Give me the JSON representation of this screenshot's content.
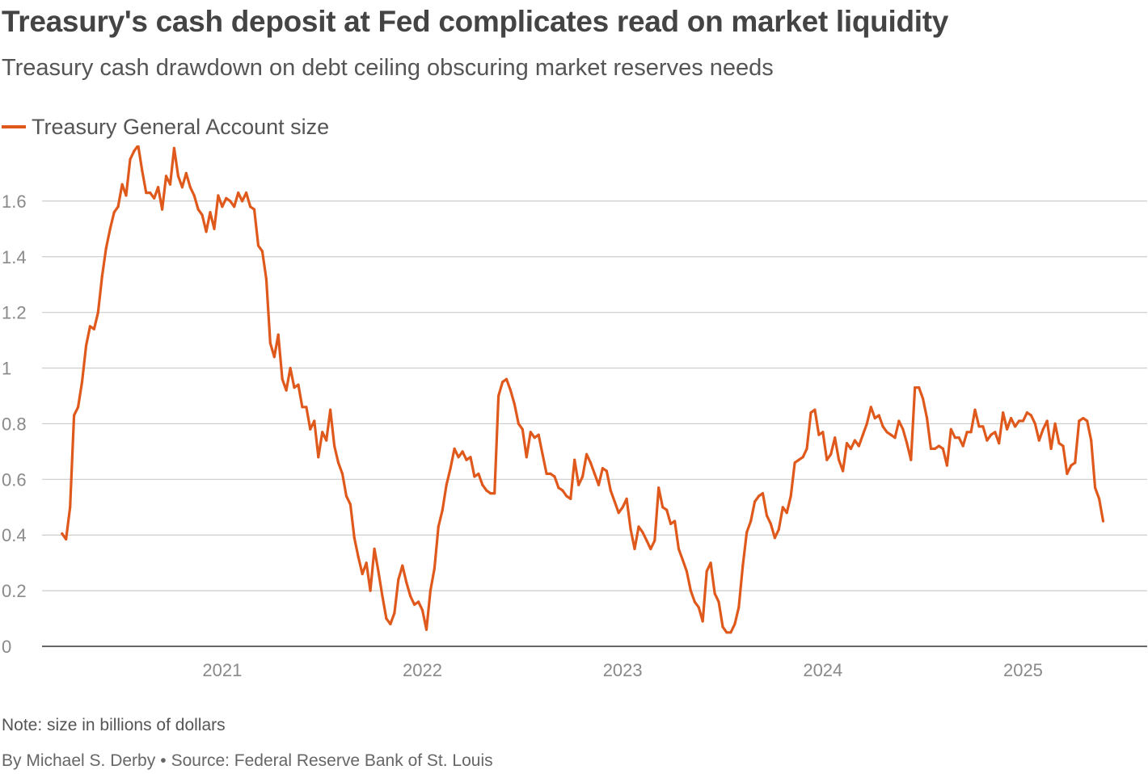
{
  "header": {
    "title": "Treasury's cash deposit at Fed complicates read on market liquidity",
    "subtitle": "Treasury cash drawdown on debt ceiling obscuring market reserves needs"
  },
  "footer": {
    "note": "Note: size in billions of dollars",
    "byline": "By Michael S. Derby",
    "separator": "•",
    "source": "Source: Federal Reserve Bank of St. Louis"
  },
  "colors": {
    "series": "#e0591c",
    "grid": "#cccccc",
    "axis": "#333333",
    "tick_text": "#8a8a8a"
  },
  "chart_data": {
    "type": "line",
    "title": "Treasury's cash deposit at Fed complicates read on market liquidity",
    "subtitle": "Treasury cash drawdown on debt ceiling obscuring market reserves needs",
    "xlabel": "",
    "ylabel": "",
    "units": "Note: size in billions of dollars",
    "legend_position": "top-left",
    "grid": "horizontal",
    "xlim": [
      2020.1,
      2025.62
    ],
    "ylim": [
      0,
      1.8
    ],
    "x_ticks": [
      {
        "value": 2021,
        "label": "2021"
      },
      {
        "value": 2022,
        "label": "2022"
      },
      {
        "value": 2023,
        "label": "2023"
      },
      {
        "value": 2024,
        "label": "2024"
      },
      {
        "value": 2025,
        "label": "2025"
      }
    ],
    "y_ticks": [
      {
        "value": 0,
        "label": "0"
      },
      {
        "value": 0.2,
        "label": "0.2"
      },
      {
        "value": 0.4,
        "label": "0.4"
      },
      {
        "value": 0.6,
        "label": "0.6"
      },
      {
        "value": 0.8,
        "label": "0.8"
      },
      {
        "value": 1,
        "label": "1"
      },
      {
        "value": 1.2,
        "label": "1.2"
      },
      {
        "value": 1.4,
        "label": "1.4"
      },
      {
        "value": 1.6,
        "label": "1.6"
      }
    ],
    "series": [
      {
        "name": "Treasury General Account size",
        "points": [
          [
            2020.2,
            0.405
          ],
          [
            2020.22,
            0.385
          ],
          [
            2020.24,
            0.5
          ],
          [
            2020.26,
            0.83
          ],
          [
            2020.28,
            0.86
          ],
          [
            2020.3,
            0.95
          ],
          [
            2020.32,
            1.08
          ],
          [
            2020.34,
            1.15
          ],
          [
            2020.36,
            1.14
          ],
          [
            2020.38,
            1.2
          ],
          [
            2020.4,
            1.33
          ],
          [
            2020.42,
            1.43
          ],
          [
            2020.44,
            1.5
          ],
          [
            2020.46,
            1.56
          ],
          [
            2020.48,
            1.58
          ],
          [
            2020.5,
            1.66
          ],
          [
            2020.52,
            1.62
          ],
          [
            2020.54,
            1.75
          ],
          [
            2020.56,
            1.78
          ],
          [
            2020.58,
            1.8
          ],
          [
            2020.6,
            1.71
          ],
          [
            2020.62,
            1.63
          ],
          [
            2020.64,
            1.63
          ],
          [
            2020.66,
            1.61
          ],
          [
            2020.68,
            1.65
          ],
          [
            2020.7,
            1.57
          ],
          [
            2020.72,
            1.69
          ],
          [
            2020.74,
            1.66
          ],
          [
            2020.76,
            1.79
          ],
          [
            2020.78,
            1.69
          ],
          [
            2020.8,
            1.65
          ],
          [
            2020.82,
            1.7
          ],
          [
            2020.84,
            1.65
          ],
          [
            2020.86,
            1.62
          ],
          [
            2020.88,
            1.57
          ],
          [
            2020.9,
            1.55
          ],
          [
            2020.92,
            1.49
          ],
          [
            2020.94,
            1.56
          ],
          [
            2020.96,
            1.5
          ],
          [
            2020.98,
            1.62
          ],
          [
            2021.0,
            1.58
          ],
          [
            2021.02,
            1.61
          ],
          [
            2021.04,
            1.6
          ],
          [
            2021.06,
            1.58
          ],
          [
            2021.08,
            1.63
          ],
          [
            2021.1,
            1.6
          ],
          [
            2021.12,
            1.63
          ],
          [
            2021.14,
            1.58
          ],
          [
            2021.16,
            1.57
          ],
          [
            2021.18,
            1.44
          ],
          [
            2021.2,
            1.42
          ],
          [
            2021.22,
            1.32
          ],
          [
            2021.24,
            1.09
          ],
          [
            2021.26,
            1.04
          ],
          [
            2021.28,
            1.12
          ],
          [
            2021.3,
            0.96
          ],
          [
            2021.32,
            0.92
          ],
          [
            2021.34,
            1.0
          ],
          [
            2021.36,
            0.93
          ],
          [
            2021.38,
            0.94
          ],
          [
            2021.4,
            0.86
          ],
          [
            2021.42,
            0.86
          ],
          [
            2021.44,
            0.78
          ],
          [
            2021.46,
            0.81
          ],
          [
            2021.48,
            0.68
          ],
          [
            2021.5,
            0.77
          ],
          [
            2021.52,
            0.74
          ],
          [
            2021.54,
            0.85
          ],
          [
            2021.56,
            0.72
          ],
          [
            2021.58,
            0.66
          ],
          [
            2021.6,
            0.62
          ],
          [
            2021.62,
            0.54
          ],
          [
            2021.64,
            0.51
          ],
          [
            2021.66,
            0.39
          ],
          [
            2021.68,
            0.32
          ],
          [
            2021.7,
            0.26
          ],
          [
            2021.72,
            0.3
          ],
          [
            2021.74,
            0.2
          ],
          [
            2021.76,
            0.35
          ],
          [
            2021.78,
            0.27
          ],
          [
            2021.8,
            0.18
          ],
          [
            2021.82,
            0.1
          ],
          [
            2021.84,
            0.08
          ],
          [
            2021.86,
            0.12
          ],
          [
            2021.88,
            0.24
          ],
          [
            2021.9,
            0.29
          ],
          [
            2021.92,
            0.23
          ],
          [
            2021.94,
            0.18
          ],
          [
            2021.96,
            0.15
          ],
          [
            2021.98,
            0.16
          ],
          [
            2022.0,
            0.13
          ],
          [
            2022.02,
            0.06
          ],
          [
            2022.04,
            0.2
          ],
          [
            2022.06,
            0.28
          ],
          [
            2022.08,
            0.43
          ],
          [
            2022.1,
            0.49
          ],
          [
            2022.12,
            0.58
          ],
          [
            2022.14,
            0.64
          ],
          [
            2022.16,
            0.71
          ],
          [
            2022.18,
            0.68
          ],
          [
            2022.2,
            0.7
          ],
          [
            2022.22,
            0.67
          ],
          [
            2022.24,
            0.68
          ],
          [
            2022.26,
            0.61
          ],
          [
            2022.28,
            0.62
          ],
          [
            2022.3,
            0.58
          ],
          [
            2022.32,
            0.56
          ],
          [
            2022.34,
            0.55
          ],
          [
            2022.36,
            0.55
          ],
          [
            2022.38,
            0.9
          ],
          [
            2022.4,
            0.95
          ],
          [
            2022.42,
            0.96
          ],
          [
            2022.44,
            0.92
          ],
          [
            2022.46,
            0.87
          ],
          [
            2022.48,
            0.8
          ],
          [
            2022.5,
            0.78
          ],
          [
            2022.52,
            0.68
          ],
          [
            2022.54,
            0.77
          ],
          [
            2022.56,
            0.75
          ],
          [
            2022.58,
            0.76
          ],
          [
            2022.6,
            0.69
          ],
          [
            2022.62,
            0.62
          ],
          [
            2022.64,
            0.62
          ],
          [
            2022.66,
            0.61
          ],
          [
            2022.68,
            0.57
          ],
          [
            2022.7,
            0.56
          ],
          [
            2022.72,
            0.54
          ],
          [
            2022.74,
            0.53
          ],
          [
            2022.76,
            0.67
          ],
          [
            2022.78,
            0.58
          ],
          [
            2022.8,
            0.61
          ],
          [
            2022.82,
            0.69
          ],
          [
            2022.84,
            0.66
          ],
          [
            2022.86,
            0.62
          ],
          [
            2022.88,
            0.58
          ],
          [
            2022.9,
            0.64
          ],
          [
            2022.92,
            0.63
          ],
          [
            2022.94,
            0.56
          ],
          [
            2022.96,
            0.52
          ],
          [
            2022.98,
            0.48
          ],
          [
            2023.0,
            0.5
          ],
          [
            2023.02,
            0.53
          ],
          [
            2023.04,
            0.42
          ],
          [
            2023.06,
            0.35
          ],
          [
            2023.08,
            0.43
          ],
          [
            2023.1,
            0.41
          ],
          [
            2023.12,
            0.38
          ],
          [
            2023.14,
            0.35
          ],
          [
            2023.16,
            0.38
          ],
          [
            2023.18,
            0.57
          ],
          [
            2023.2,
            0.5
          ],
          [
            2023.22,
            0.49
          ],
          [
            2023.24,
            0.44
          ],
          [
            2023.26,
            0.45
          ],
          [
            2023.28,
            0.35
          ],
          [
            2023.3,
            0.31
          ],
          [
            2023.32,
            0.27
          ],
          [
            2023.34,
            0.2
          ],
          [
            2023.36,
            0.16
          ],
          [
            2023.38,
            0.14
          ],
          [
            2023.4,
            0.09
          ],
          [
            2023.42,
            0.27
          ],
          [
            2023.44,
            0.3
          ],
          [
            2023.46,
            0.19
          ],
          [
            2023.48,
            0.16
          ],
          [
            2023.5,
            0.07
          ],
          [
            2023.52,
            0.05
          ],
          [
            2023.54,
            0.05
          ],
          [
            2023.56,
            0.08
          ],
          [
            2023.58,
            0.14
          ],
          [
            2023.6,
            0.29
          ],
          [
            2023.62,
            0.41
          ],
          [
            2023.64,
            0.45
          ],
          [
            2023.66,
            0.52
          ],
          [
            2023.68,
            0.54
          ],
          [
            2023.7,
            0.55
          ],
          [
            2023.72,
            0.47
          ],
          [
            2023.74,
            0.44
          ],
          [
            2023.76,
            0.39
          ],
          [
            2023.78,
            0.42
          ],
          [
            2023.8,
            0.5
          ],
          [
            2023.82,
            0.48
          ],
          [
            2023.84,
            0.54
          ],
          [
            2023.86,
            0.66
          ],
          [
            2023.88,
            0.67
          ],
          [
            2023.9,
            0.68
          ],
          [
            2023.92,
            0.71
          ],
          [
            2023.94,
            0.84
          ],
          [
            2023.96,
            0.85
          ],
          [
            2023.98,
            0.76
          ],
          [
            2024.0,
            0.77
          ],
          [
            2024.02,
            0.67
          ],
          [
            2024.04,
            0.69
          ],
          [
            2024.06,
            0.75
          ],
          [
            2024.08,
            0.67
          ],
          [
            2024.1,
            0.63
          ],
          [
            2024.12,
            0.73
          ],
          [
            2024.14,
            0.71
          ],
          [
            2024.16,
            0.74
          ],
          [
            2024.18,
            0.72
          ],
          [
            2024.2,
            0.76
          ],
          [
            2024.22,
            0.8
          ],
          [
            2024.24,
            0.86
          ],
          [
            2024.26,
            0.82
          ],
          [
            2024.28,
            0.83
          ],
          [
            2024.3,
            0.79
          ],
          [
            2024.32,
            0.77
          ],
          [
            2024.34,
            0.76
          ],
          [
            2024.36,
            0.75
          ],
          [
            2024.38,
            0.81
          ],
          [
            2024.4,
            0.78
          ],
          [
            2024.42,
            0.73
          ],
          [
            2024.44,
            0.67
          ],
          [
            2024.46,
            0.93
          ],
          [
            2024.48,
            0.93
          ],
          [
            2024.5,
            0.89
          ],
          [
            2024.52,
            0.82
          ],
          [
            2024.54,
            0.71
          ],
          [
            2024.56,
            0.71
          ],
          [
            2024.58,
            0.72
          ],
          [
            2024.6,
            0.71
          ],
          [
            2024.62,
            0.65
          ],
          [
            2024.64,
            0.78
          ],
          [
            2024.66,
            0.75
          ],
          [
            2024.68,
            0.75
          ],
          [
            2024.7,
            0.72
          ],
          [
            2024.72,
            0.77
          ],
          [
            2024.74,
            0.77
          ],
          [
            2024.76,
            0.85
          ],
          [
            2024.78,
            0.79
          ],
          [
            2024.8,
            0.79
          ],
          [
            2024.82,
            0.74
          ],
          [
            2024.84,
            0.76
          ],
          [
            2024.86,
            0.77
          ],
          [
            2024.88,
            0.73
          ],
          [
            2024.9,
            0.84
          ],
          [
            2024.92,
            0.78
          ],
          [
            2024.94,
            0.82
          ],
          [
            2024.96,
            0.79
          ],
          [
            2024.98,
            0.81
          ],
          [
            2025.0,
            0.81
          ],
          [
            2025.02,
            0.84
          ],
          [
            2025.04,
            0.83
          ],
          [
            2025.06,
            0.8
          ],
          [
            2025.08,
            0.74
          ],
          [
            2025.1,
            0.78
          ],
          [
            2025.12,
            0.81
          ],
          [
            2025.14,
            0.71
          ],
          [
            2025.16,
            0.8
          ],
          [
            2025.18,
            0.73
          ],
          [
            2025.2,
            0.72
          ],
          [
            2025.22,
            0.62
          ],
          [
            2025.24,
            0.65
          ],
          [
            2025.26,
            0.66
          ],
          [
            2025.28,
            0.81
          ],
          [
            2025.3,
            0.82
          ],
          [
            2025.32,
            0.81
          ],
          [
            2025.34,
            0.74
          ],
          [
            2025.36,
            0.57
          ],
          [
            2025.38,
            0.53
          ],
          [
            2025.4,
            0.45
          ]
        ]
      }
    ]
  }
}
